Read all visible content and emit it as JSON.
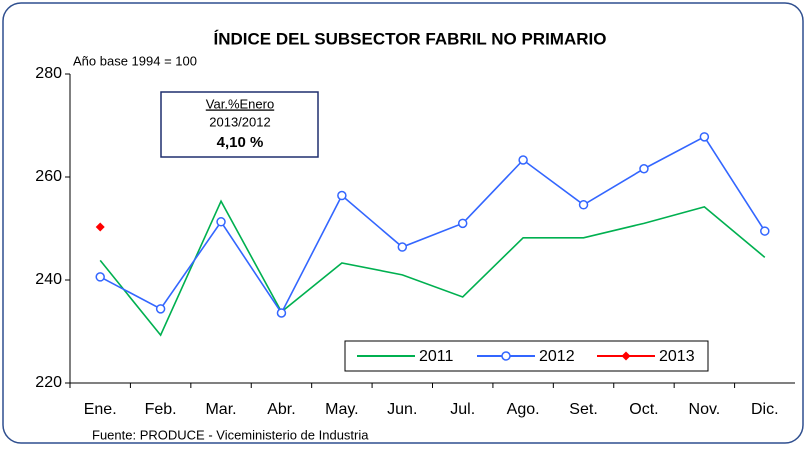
{
  "chart_data": {
    "type": "line",
    "title": "ÍNDICE DEL SUBSECTOR FABRIL NO PRIMARIO",
    "subtitle": "Año base 1994 = 100",
    "source": "Fuente: PRODUCE - Viceministerio de Industria",
    "annotation": {
      "title": "Var.%Enero",
      "period": "2013/2012",
      "value": "4,10 %"
    },
    "categories": [
      "Ene.",
      "Feb.",
      "Mar.",
      "Abr.",
      "May.",
      "Jun.",
      "Jul.",
      "Ago.",
      "Set.",
      "Oct.",
      "Nov.",
      "Dic."
    ],
    "series": [
      {
        "name": "2011",
        "color": "#00b050",
        "marker": null,
        "values": [
          243.8,
          229.3,
          255.3,
          233.8,
          243.3,
          241.0,
          236.7,
          248.2,
          248.2,
          251.0,
          254.2,
          244.4
        ]
      },
      {
        "name": "2012",
        "color": "#3366ff",
        "marker": "circle",
        "values": [
          240.6,
          234.4,
          251.3,
          233.6,
          256.4,
          246.4,
          251.0,
          263.3,
          254.6,
          261.6,
          267.8,
          249.5
        ]
      },
      {
        "name": "2013",
        "color": "#ff0000",
        "marker": "diamond",
        "values": [
          250.3,
          null,
          null,
          null,
          null,
          null,
          null,
          null,
          null,
          null,
          null,
          null
        ]
      }
    ],
    "ylim": [
      220,
      280
    ],
    "yticks": [
      220,
      240,
      260,
      280
    ],
    "grid": false,
    "legend": "bottom-right"
  }
}
